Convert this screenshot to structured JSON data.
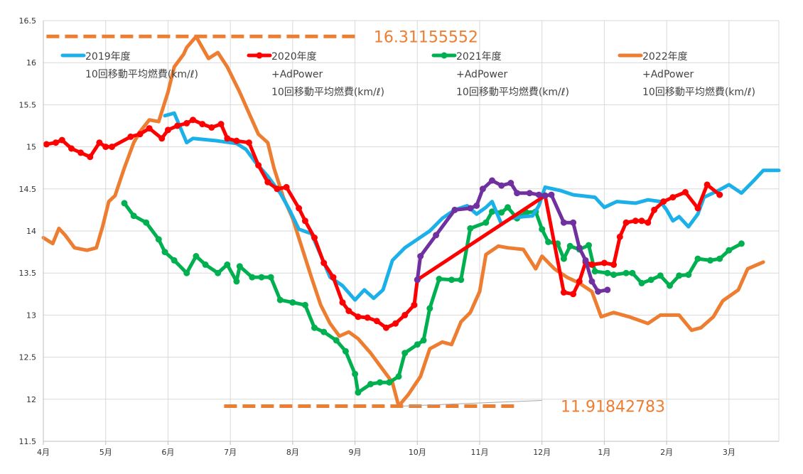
{
  "chart_data": {
    "type": "line",
    "ylim": [
      11.5,
      16.5
    ],
    "yticks": [
      11.5,
      12,
      12.5,
      13,
      13.5,
      14,
      14.5,
      15,
      15.5,
      16,
      16.5
    ],
    "ytick_labels": [
      "11.5",
      "12",
      "12.5",
      "13",
      "13.5",
      "14",
      "14.5",
      "15",
      "15.5",
      "16",
      "16.5"
    ],
    "xlim": [
      0,
      11.8
    ],
    "xticks": [
      0,
      1,
      2,
      3,
      4,
      5,
      6,
      7,
      8,
      9,
      10,
      11
    ],
    "xtick_labels": [
      "4月",
      "5月",
      "6月",
      "7月",
      "8月",
      "9月",
      "10月",
      "11月",
      "12月",
      "1月",
      "2月",
      "3月"
    ],
    "grid": true,
    "legend_position": "top",
    "series": [
      {
        "key": "s2019",
        "name_lines": [
          "2019年度",
          "10回移動平均燃費(km/ℓ)"
        ],
        "color": "#1CB0E8",
        "markers": false,
        "points": [
          [
            1.95,
            15.37
          ],
          [
            2.1,
            15.4
          ],
          [
            2.3,
            15.05
          ],
          [
            2.4,
            15.1
          ],
          [
            2.8,
            15.07
          ],
          [
            3.1,
            15.04
          ],
          [
            3.25,
            14.97
          ],
          [
            3.4,
            14.82
          ],
          [
            3.6,
            14.65
          ],
          [
            3.8,
            14.45
          ],
          [
            3.95,
            14.25
          ],
          [
            4.1,
            14.02
          ],
          [
            4.3,
            13.97
          ],
          [
            4.4,
            13.8
          ],
          [
            4.6,
            13.45
          ],
          [
            4.8,
            13.35
          ],
          [
            5.0,
            13.18
          ],
          [
            5.15,
            13.3
          ],
          [
            5.3,
            13.2
          ],
          [
            5.45,
            13.3
          ],
          [
            5.6,
            13.65
          ],
          [
            5.8,
            13.8
          ],
          [
            6.0,
            13.9
          ],
          [
            6.2,
            14.0
          ],
          [
            6.4,
            14.15
          ],
          [
            6.6,
            14.25
          ],
          [
            6.8,
            14.3
          ],
          [
            6.95,
            14.2
          ],
          [
            7.1,
            14.28
          ],
          [
            7.2,
            14.35
          ],
          [
            7.35,
            14.08
          ],
          [
            7.5,
            14.15
          ],
          [
            7.7,
            14.17
          ],
          [
            7.85,
            14.18
          ],
          [
            7.95,
            14.3
          ],
          [
            8.05,
            14.52
          ],
          [
            8.3,
            14.48
          ],
          [
            8.5,
            14.43
          ],
          [
            8.85,
            14.4
          ],
          [
            9.0,
            14.28
          ],
          [
            9.2,
            14.35
          ],
          [
            9.5,
            14.33
          ],
          [
            9.7,
            14.37
          ],
          [
            9.9,
            14.35
          ],
          [
            10.0,
            14.25
          ],
          [
            10.1,
            14.12
          ],
          [
            10.2,
            14.17
          ],
          [
            10.35,
            14.05
          ],
          [
            10.5,
            14.2
          ],
          [
            10.6,
            14.4
          ],
          [
            10.8,
            14.47
          ],
          [
            11.0,
            14.55
          ],
          [
            11.2,
            14.45
          ],
          [
            11.4,
            14.6
          ],
          [
            11.55,
            14.72
          ],
          [
            11.8,
            14.72
          ]
        ]
      },
      {
        "key": "s2020",
        "name_lines": [
          "2020年度",
          "+AdPower",
          "10回移動平均燃費(km/ℓ)"
        ],
        "color": "#FF0000",
        "markers": true,
        "points": [
          [
            0.05,
            15.03
          ],
          [
            0.2,
            15.05
          ],
          [
            0.3,
            15.08
          ],
          [
            0.45,
            14.98
          ],
          [
            0.6,
            14.93
          ],
          [
            0.75,
            14.88
          ],
          [
            0.9,
            15.05
          ],
          [
            1.0,
            15.0
          ],
          [
            1.1,
            15.0
          ],
          [
            1.4,
            15.12
          ],
          [
            1.55,
            15.15
          ],
          [
            1.7,
            15.22
          ],
          [
            1.9,
            15.1
          ],
          [
            2.0,
            15.2
          ],
          [
            2.15,
            15.25
          ],
          [
            2.3,
            15.28
          ],
          [
            2.4,
            15.32
          ],
          [
            2.55,
            15.27
          ],
          [
            2.7,
            15.23
          ],
          [
            2.85,
            15.27
          ],
          [
            2.95,
            15.1
          ],
          [
            3.1,
            15.07
          ],
          [
            3.3,
            15.05
          ],
          [
            3.45,
            14.78
          ],
          [
            3.6,
            14.58
          ],
          [
            3.75,
            14.5
          ],
          [
            3.9,
            14.52
          ],
          [
            4.1,
            14.27
          ],
          [
            4.2,
            14.12
          ],
          [
            4.35,
            13.92
          ],
          [
            4.5,
            13.62
          ],
          [
            4.65,
            13.45
          ],
          [
            4.8,
            13.15
          ],
          [
            4.9,
            13.05
          ],
          [
            5.05,
            12.98
          ],
          [
            5.2,
            12.97
          ],
          [
            5.35,
            12.93
          ],
          [
            5.5,
            12.85
          ],
          [
            5.65,
            12.9
          ],
          [
            5.8,
            13.0
          ],
          [
            5.95,
            13.12
          ],
          [
            6.0,
            13.42
          ],
          [
            8.05,
            14.42
          ],
          [
            8.35,
            13.27
          ],
          [
            8.5,
            13.25
          ],
          [
            8.6,
            13.4
          ],
          [
            8.7,
            13.63
          ],
          [
            8.8,
            13.6
          ],
          [
            9.0,
            13.62
          ],
          [
            9.15,
            13.6
          ],
          [
            9.25,
            13.93
          ],
          [
            9.35,
            14.1
          ],
          [
            9.5,
            14.12
          ],
          [
            9.6,
            14.12
          ],
          [
            9.7,
            14.1
          ],
          [
            9.8,
            14.25
          ],
          [
            9.95,
            14.35
          ],
          [
            10.1,
            14.4
          ],
          [
            10.3,
            14.46
          ],
          [
            10.5,
            14.27
          ],
          [
            10.65,
            14.55
          ],
          [
            10.85,
            14.43
          ]
        ]
      },
      {
        "key": "s2020_adpower",
        "name_lines": [],
        "color": "#7030A0",
        "markers": true,
        "points": [
          [
            6.0,
            13.42
          ],
          [
            6.05,
            13.7
          ],
          [
            6.3,
            13.95
          ],
          [
            6.6,
            14.25
          ],
          [
            6.85,
            14.27
          ],
          [
            6.95,
            14.3
          ],
          [
            7.05,
            14.5
          ],
          [
            7.2,
            14.6
          ],
          [
            7.35,
            14.54
          ],
          [
            7.5,
            14.57
          ],
          [
            7.6,
            14.45
          ],
          [
            7.8,
            14.45
          ],
          [
            7.95,
            14.43
          ],
          [
            8.05,
            14.42
          ],
          [
            8.15,
            14.43
          ],
          [
            8.35,
            14.1
          ],
          [
            8.5,
            14.1
          ],
          [
            8.6,
            13.8
          ],
          [
            8.7,
            13.65
          ],
          [
            8.8,
            13.4
          ],
          [
            8.9,
            13.28
          ],
          [
            9.05,
            13.3
          ]
        ]
      },
      {
        "key": "s2021",
        "name_lines": [
          "2021年度",
          "+AdPower",
          "10回移動平均燃費(km/ℓ)"
        ],
        "color": "#00B050",
        "markers": true,
        "points": [
          [
            1.3,
            14.33
          ],
          [
            1.45,
            14.18
          ],
          [
            1.65,
            14.1
          ],
          [
            1.85,
            13.9
          ],
          [
            1.95,
            13.75
          ],
          [
            2.1,
            13.65
          ],
          [
            2.3,
            13.5
          ],
          [
            2.45,
            13.7
          ],
          [
            2.6,
            13.6
          ],
          [
            2.8,
            13.5
          ],
          [
            2.95,
            13.6
          ],
          [
            3.1,
            13.4
          ],
          [
            3.15,
            13.58
          ],
          [
            3.35,
            13.45
          ],
          [
            3.5,
            13.45
          ],
          [
            3.65,
            13.45
          ],
          [
            3.8,
            13.18
          ],
          [
            4.0,
            13.15
          ],
          [
            4.2,
            13.12
          ],
          [
            4.35,
            12.85
          ],
          [
            4.5,
            12.8
          ],
          [
            4.7,
            12.7
          ],
          [
            4.85,
            12.57
          ],
          [
            5.0,
            12.3
          ],
          [
            5.05,
            12.08
          ],
          [
            5.25,
            12.18
          ],
          [
            5.4,
            12.2
          ],
          [
            5.55,
            12.2
          ],
          [
            5.7,
            12.27
          ],
          [
            5.8,
            12.55
          ],
          [
            6.0,
            12.65
          ],
          [
            6.1,
            12.7
          ],
          [
            6.2,
            13.08
          ],
          [
            6.35,
            13.43
          ],
          [
            6.55,
            13.42
          ],
          [
            6.7,
            13.42
          ],
          [
            6.85,
            14.03
          ],
          [
            7.1,
            14.1
          ],
          [
            7.2,
            14.23
          ],
          [
            7.35,
            14.22
          ],
          [
            7.45,
            14.28
          ],
          [
            7.6,
            14.15
          ],
          [
            7.75,
            14.22
          ],
          [
            7.9,
            14.23
          ],
          [
            8.0,
            14.02
          ],
          [
            8.1,
            13.87
          ],
          [
            8.25,
            13.85
          ],
          [
            8.35,
            13.67
          ],
          [
            8.45,
            13.82
          ],
          [
            8.6,
            13.78
          ],
          [
            8.75,
            13.83
          ],
          [
            8.85,
            13.52
          ],
          [
            9.05,
            13.5
          ],
          [
            9.15,
            13.48
          ],
          [
            9.35,
            13.5
          ],
          [
            9.45,
            13.5
          ],
          [
            9.6,
            13.38
          ],
          [
            9.75,
            13.42
          ],
          [
            9.9,
            13.47
          ],
          [
            10.05,
            13.35
          ],
          [
            10.2,
            13.47
          ],
          [
            10.35,
            13.48
          ],
          [
            10.5,
            13.67
          ],
          [
            10.7,
            13.65
          ],
          [
            10.85,
            13.67
          ],
          [
            11.0,
            13.77
          ],
          [
            11.2,
            13.85
          ]
        ]
      },
      {
        "key": "s2022",
        "name_lines": [
          "2022年度",
          "+AdPower",
          "10回移動平均燃費(km/ℓ)"
        ],
        "color": "#ED7D31",
        "markers": false,
        "points": [
          [
            0.0,
            13.92
          ],
          [
            0.15,
            13.85
          ],
          [
            0.25,
            14.03
          ],
          [
            0.35,
            13.95
          ],
          [
            0.5,
            13.8
          ],
          [
            0.7,
            13.77
          ],
          [
            0.85,
            13.8
          ],
          [
            0.95,
            14.05
          ],
          [
            1.05,
            14.35
          ],
          [
            1.15,
            14.42
          ],
          [
            1.3,
            14.75
          ],
          [
            1.45,
            15.05
          ],
          [
            1.55,
            15.18
          ],
          [
            1.7,
            15.32
          ],
          [
            1.85,
            15.3
          ],
          [
            2.0,
            15.65
          ],
          [
            2.1,
            15.95
          ],
          [
            2.25,
            16.1
          ],
          [
            2.3,
            16.18
          ],
          [
            2.45,
            16.31
          ],
          [
            2.55,
            16.18
          ],
          [
            2.65,
            16.05
          ],
          [
            2.8,
            16.12
          ],
          [
            2.95,
            15.95
          ],
          [
            3.15,
            15.65
          ],
          [
            3.3,
            15.4
          ],
          [
            3.45,
            15.15
          ],
          [
            3.6,
            15.05
          ],
          [
            3.7,
            14.75
          ],
          [
            3.85,
            14.4
          ],
          [
            4.0,
            14.15
          ],
          [
            4.15,
            13.8
          ],
          [
            4.3,
            13.45
          ],
          [
            4.45,
            13.12
          ],
          [
            4.6,
            12.9
          ],
          [
            4.75,
            12.75
          ],
          [
            4.9,
            12.8
          ],
          [
            5.05,
            12.72
          ],
          [
            5.25,
            12.55
          ],
          [
            5.45,
            12.35
          ],
          [
            5.6,
            12.2
          ],
          [
            5.7,
            11.92
          ],
          [
            5.85,
            12.05
          ],
          [
            6.05,
            12.27
          ],
          [
            6.2,
            12.6
          ],
          [
            6.4,
            12.68
          ],
          [
            6.55,
            12.65
          ],
          [
            6.7,
            12.92
          ],
          [
            6.85,
            13.03
          ],
          [
            7.0,
            13.28
          ],
          [
            7.1,
            13.72
          ],
          [
            7.3,
            13.82
          ],
          [
            7.45,
            13.8
          ],
          [
            7.7,
            13.78
          ],
          [
            7.9,
            13.55
          ],
          [
            8.0,
            13.7
          ],
          [
            8.2,
            13.55
          ],
          [
            8.4,
            13.45
          ],
          [
            8.6,
            13.38
          ],
          [
            8.8,
            13.28
          ],
          [
            8.95,
            12.98
          ],
          [
            9.15,
            13.03
          ],
          [
            9.4,
            12.98
          ],
          [
            9.7,
            12.9
          ],
          [
            9.9,
            13.0
          ],
          [
            10.2,
            13.0
          ],
          [
            10.4,
            12.82
          ],
          [
            10.55,
            12.85
          ],
          [
            10.75,
            12.98
          ],
          [
            10.9,
            13.17
          ],
          [
            11.15,
            13.3
          ],
          [
            11.3,
            13.55
          ],
          [
            11.55,
            13.63
          ]
        ]
      }
    ],
    "reference_lines": [
      {
        "y": 16.31155552,
        "x_start": 0.05,
        "x_end": 5.05,
        "label": "16.31155552",
        "label_x": 5.3
      },
      {
        "y": 11.91842783,
        "x_start": 2.9,
        "x_end": 7.6,
        "label": "11.91842783",
        "label_x": 8.3
      }
    ]
  }
}
